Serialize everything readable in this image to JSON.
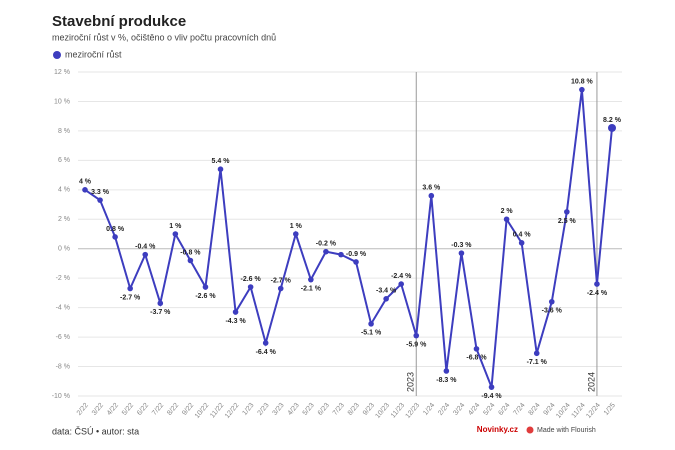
{
  "chart_data": {
    "type": "line",
    "title": "Stavební produkce",
    "subtitle": "meziroční růst v %, očištěno o vliv počtu pracovních dnů",
    "categories": [
      "2/22",
      "3/22",
      "4/22",
      "5/22",
      "6/22",
      "7/22",
      "8/22",
      "9/22",
      "10/22",
      "11/22",
      "12/22",
      "1/23",
      "2/23",
      "3/23",
      "4/23",
      "5/23",
      "6/23",
      "7/23",
      "8/23",
      "9/23",
      "10/23",
      "11/23",
      "12/23",
      "1/24",
      "2/24",
      "3/24",
      "4/24",
      "5/24",
      "6/24",
      "7/24",
      "8/24",
      "9/24",
      "10/24",
      "11/24",
      "12/24",
      "1/25"
    ],
    "series": [
      {
        "name": "meziroční růst",
        "color": "#3d3dbf",
        "values": [
          4,
          3.3,
          0.8,
          -2.7,
          -0.4,
          -3.7,
          1,
          -0.8,
          -2.6,
          5.4,
          -4.3,
          -2.6,
          -6.4,
          -2.7,
          1,
          -2.1,
          -0.2,
          -0.4,
          -0.9,
          -5.1,
          -3.4,
          -2.4,
          -5.9,
          3.6,
          -8.3,
          -0.3,
          -6.8,
          -9.4,
          2,
          0.4,
          -7.1,
          -3.6,
          2.5,
          10.8,
          -2.4,
          8.2
        ],
        "value_labels": [
          "4 %",
          "3.3 %",
          "0.8 %",
          "-2.7 %",
          "-0.4 %",
          "-3.7 %",
          "1 %",
          "-0.8 %",
          "-2.6 %",
          "5.4 %",
          "-4.3 %",
          "-2.6 %",
          "-6.4 %",
          "-2.7 %",
          "1 %",
          "-2.1 %",
          "-0.2 %",
          null,
          "-0.9 %",
          "-5.1 %",
          "-3.4 %",
          "-2.4 %",
          "-5.9 %",
          "3.6 %",
          "-8.3 %",
          "-0.3 %",
          "-6.8 %",
          "-9.4 %",
          "2 %",
          "0.4 %",
          "-7.1 %",
          "-3.6 %",
          "2.5 %",
          "10.8 %",
          "-2.4 %",
          "8.2 %"
        ]
      }
    ],
    "ylim": [
      -10,
      12
    ],
    "yticks": [
      {
        "value": -10,
        "label": "-10 %"
      },
      {
        "value": -8,
        "label": "-8 %"
      },
      {
        "value": -6,
        "label": "-6 %"
      },
      {
        "value": -4,
        "label": "-4 %"
      },
      {
        "value": -2,
        "label": "-2 %"
      },
      {
        "value": 0,
        "label": "0 %"
      },
      {
        "value": 2,
        "label": "2 %"
      },
      {
        "value": 4,
        "label": "4 %"
      },
      {
        "value": 6,
        "label": "6 %"
      },
      {
        "value": 8,
        "label": "8 %"
      },
      {
        "value": 10,
        "label": "10 %"
      },
      {
        "value": 12,
        "label": "12 %"
      }
    ],
    "grid": true,
    "annotations": [
      {
        "label": "2023",
        "x": "12/23"
      },
      {
        "label": "2024",
        "x": "12/24"
      }
    ],
    "source": "data: ČSÚ • autor: sta",
    "brand": "Novinky.cz",
    "credit": "Made with Flourish"
  }
}
